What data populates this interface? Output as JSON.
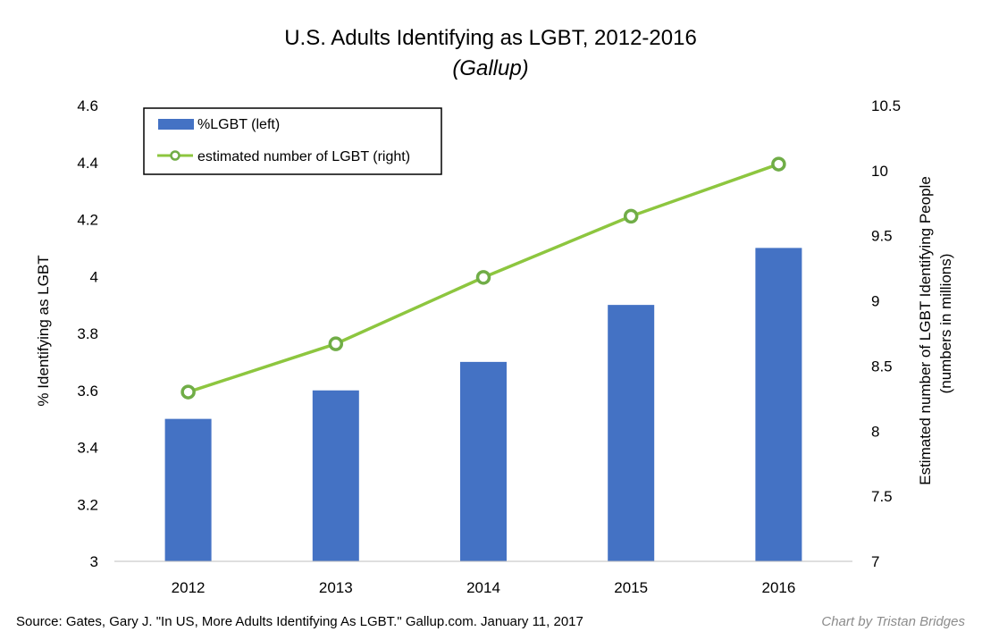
{
  "chart_data": {
    "type": "bar",
    "title": "U.S. Adults Identifying as LGBT, 2012-2016",
    "subtitle": "(Gallup)",
    "categories": [
      "2012",
      "2013",
      "2014",
      "2015",
      "2016"
    ],
    "series": [
      {
        "name": "%LGBT (left)",
        "type": "bar",
        "axis": "left",
        "color": "#4472C4",
        "values": [
          3.5,
          3.6,
          3.7,
          3.9,
          4.1
        ]
      },
      {
        "name": "estimated number of LGBT (right)",
        "type": "line",
        "axis": "right",
        "color": "#8DC63F",
        "marker_color": "#70AD47",
        "values": [
          8.3,
          8.67,
          9.18,
          9.65,
          10.05
        ]
      }
    ],
    "y_left": {
      "label": "% Identifying as LGBT",
      "lim": [
        3,
        4.6
      ],
      "ticks": [
        "3",
        "3.2",
        "3.4",
        "3.6",
        "3.8",
        "4",
        "4.2",
        "4.4",
        "4.6"
      ]
    },
    "y_right": {
      "label_line1": "Estimated number of LGBT Identifying People",
      "label_line2": "(numbers in millions)",
      "lim": [
        7,
        10.5
      ],
      "ticks": [
        "7",
        "7.5",
        "8",
        "8.5",
        "9",
        "9.5",
        "10",
        "10.5"
      ]
    },
    "grid": false,
    "legend_position": "top-left",
    "source": "Source: Gates, Gary J. \"In US, More Adults Identifying As LGBT.\" Gallup.com. January 11, 2017",
    "credit": "Chart by Tristan Bridges"
  }
}
